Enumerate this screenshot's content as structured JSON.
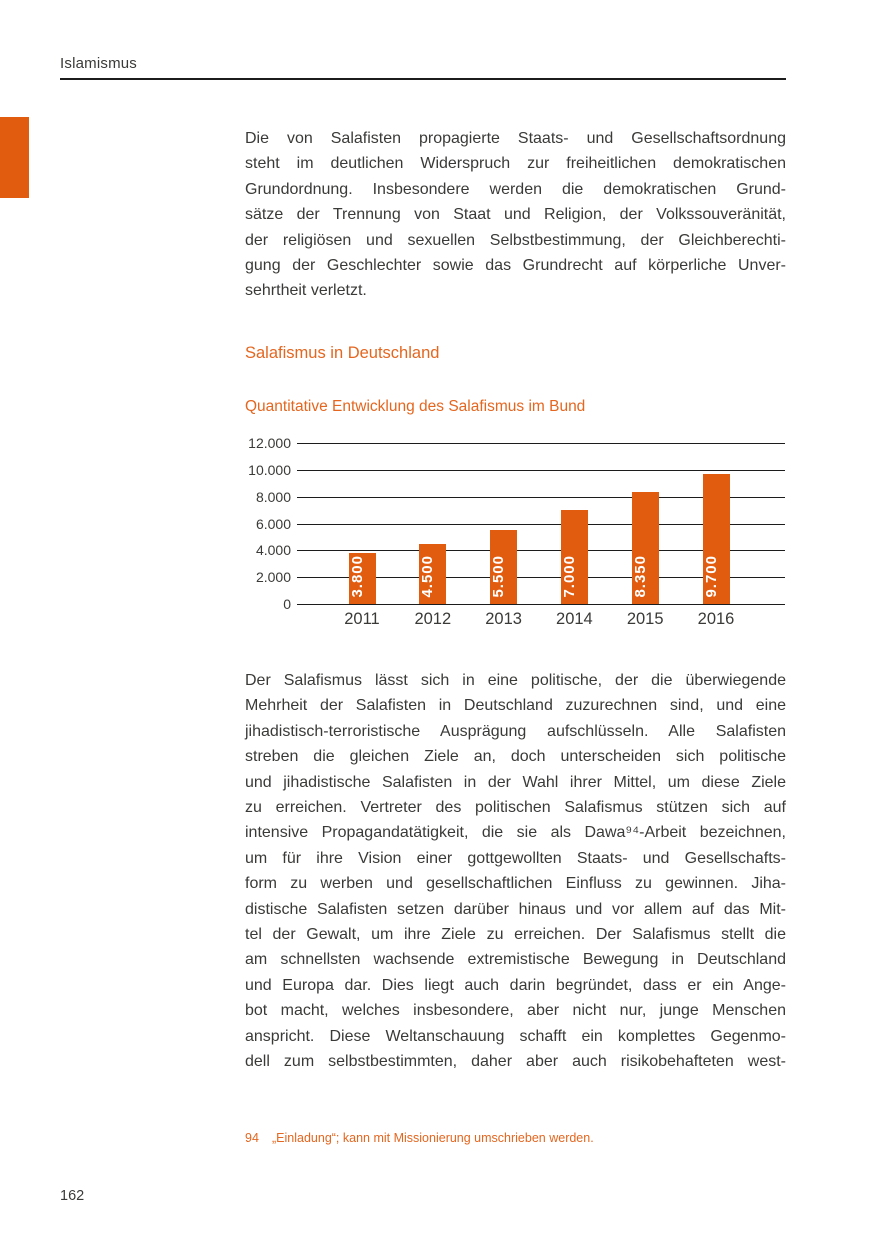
{
  "page": {
    "header_label": "Islamismus",
    "page_number": "162"
  },
  "article": {
    "paragraph1": {
      "justify_last_line": false,
      "lines": [
        "Die von Salafisten propagierte Staats- und Gesellschaftsordnung",
        "steht im deutlichen Widerspruch zur freiheitlichen demokratischen",
        "Grundordnung. Insbesondere werden die demokratischen Grund-",
        "sätze der Trennung von Staat und Religion, der Volkssouveränität,",
        "der religiösen und sexuellen Selbstbestimmung, der Gleichberechti-",
        "gung der Geschlechter sowie das Grundrecht auf körperliche Unver-",
        "sehrtheit verletzt."
      ]
    },
    "section_heading": "Salafismus in Deutschland",
    "chart_heading": "Quantitative Entwicklung des Salafismus im Bund",
    "paragraph2": {
      "justify_last_line": true,
      "lines": [
        "Der Salafismus lässt sich in eine politische, der die überwiegende",
        "Mehrheit der Salafisten in Deutschland zuzurechnen sind, und eine",
        "jihadistisch-terroristische Ausprägung aufschlüsseln. Alle Salafisten",
        "streben die gleichen Ziele an, doch unterscheiden sich politische",
        "und jihadistische Salafisten in der Wahl ihrer Mittel, um diese Ziele",
        "zu erreichen. Vertreter des politischen Salafismus stützen sich auf",
        "intensive Propagandatätigkeit, die sie als Dawa⁹⁴-Arbeit bezeichnen,",
        "um für ihre Vision einer gottgewollten Staats- und Gesellschafts-",
        "form zu werben und gesellschaftlichen Einfluss zu gewinnen. Jiha-",
        "distische Salafisten setzen darüber hinaus und vor allem auf das Mit-",
        "tel der Gewalt, um ihre Ziele zu erreichen. Der Salafismus stellt die",
        "am schnellsten wachsende extremistische Bewegung in Deutschland",
        "und Europa dar. Dies liegt auch darin begründet, dass er ein Ange-",
        "bot macht, welches insbesondere, aber nicht nur, junge Menschen",
        "anspricht. Diese Weltanschauung schafft ein komplettes Gegenmo-",
        "dell zum selbstbestimmten, daher aber auch risikobehafteten west-"
      ]
    },
    "footnote": {
      "number": "94",
      "text": "„Einladung“; kann mit Missionierung umschrieben werden."
    }
  },
  "chart_data": {
    "type": "bar",
    "title": "Quantitative Entwicklung des Salafismus im Bund",
    "categories": [
      "2011",
      "2012",
      "2013",
      "2014",
      "2015",
      "2016"
    ],
    "values": [
      3800,
      4500,
      5500,
      7000,
      8350,
      9700
    ],
    "bar_labels": [
      "3.800",
      "4.500",
      "5.500",
      "7.000",
      "8.350",
      "9.700"
    ],
    "yticks": [
      0,
      2000,
      4000,
      6000,
      8000,
      10000,
      12000
    ],
    "ytick_labels": [
      "0",
      "2.000",
      "4.000",
      "6.000",
      "8.000",
      "10.000",
      "12.000"
    ],
    "ylim": [
      0,
      12000
    ],
    "xlabel": "",
    "ylabel": "",
    "grid": "horizontal",
    "legend": "none",
    "bar_label_orientation": "vertical-bottom-to-top"
  },
  "colors": {
    "accent_orange": "#e15c0f",
    "heading_orange": "#e4661f",
    "body_text": "#3a3a38",
    "grid_line": "#1c1c1c",
    "bar_label_white": "#ffffff"
  }
}
